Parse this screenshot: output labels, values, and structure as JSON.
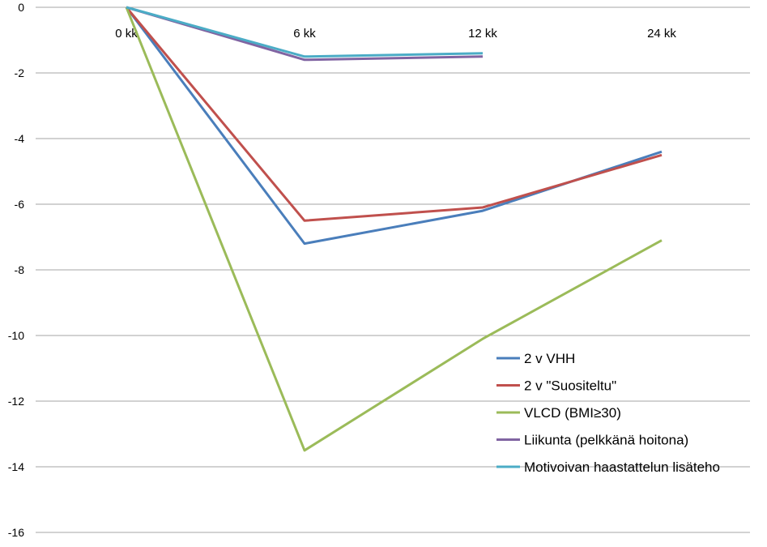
{
  "chart_data": {
    "type": "line",
    "categories": [
      "0 kk",
      "6 kk",
      "12 kk",
      "24 kk"
    ],
    "ylim": [
      -16,
      0
    ],
    "yticks": [
      0,
      -2,
      -4,
      -6,
      -8,
      -10,
      -12,
      -14,
      -16
    ],
    "grid": true,
    "legend_position": "bottom-right",
    "series": [
      {
        "name": "2 v VHH",
        "color": "#4a7ebb",
        "values": [
          0,
          -7.2,
          -6.2,
          -4.4
        ]
      },
      {
        "name": "2 v \"Suositeltu\"",
        "color": "#c0504d",
        "values": [
          0,
          -6.5,
          -6.1,
          -4.5
        ]
      },
      {
        "name": "VLCD (BMI≥30)",
        "color": "#9bbb59",
        "values": [
          0,
          -13.5,
          -10.1,
          -7.1
        ]
      },
      {
        "name": "Liikunta (pelkkänä hoitona)",
        "color": "#8064a2",
        "values": [
          0,
          -1.6,
          -1.5,
          null
        ]
      },
      {
        "name": "Motivoivan haastattelun lisäteho",
        "color": "#4bacc6",
        "values": [
          0,
          -1.5,
          -1.4,
          null
        ]
      }
    ]
  }
}
